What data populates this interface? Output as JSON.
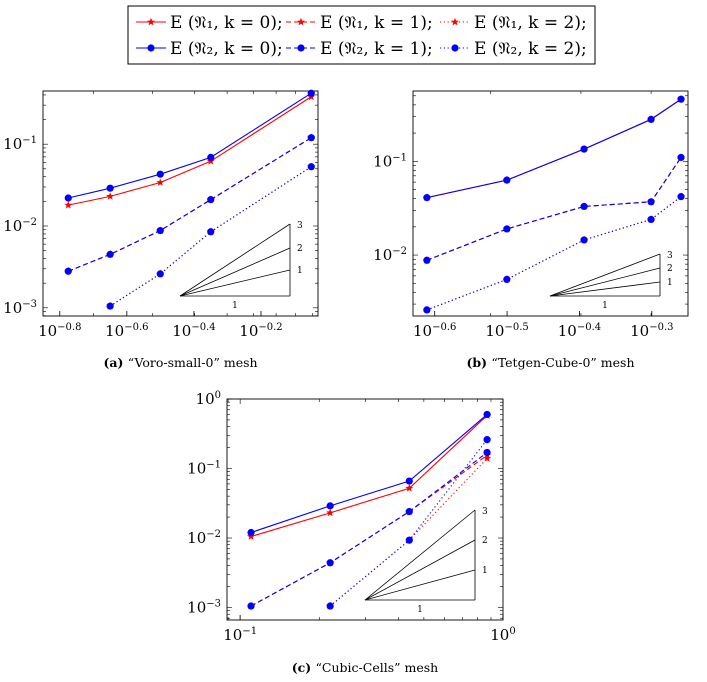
{
  "legend": {
    "entries": [
      {
        "label": "E (𝔑₁, k = 0);",
        "color": "#ff0000",
        "dash": "solid",
        "marker": "star"
      },
      {
        "label": "E (𝔑₁, k = 1);",
        "color": "#ff0000",
        "dash": "dashed",
        "marker": "star"
      },
      {
        "label": "E (𝔑₁, k = 2);",
        "color": "#ff0000",
        "dash": "dotted",
        "marker": "star"
      },
      {
        "label": "E (𝔑₂, k = 0);",
        "color": "#0000ff",
        "dash": "solid",
        "marker": "circle"
      },
      {
        "label": "E (𝔑₂, k = 1);",
        "color": "#0000ff",
        "dash": "dashed",
        "marker": "circle"
      },
      {
        "label": "E (𝔑₂, k = 2);",
        "color": "#0000ff",
        "dash": "dotted",
        "marker": "circle"
      }
    ]
  },
  "chart_data": [
    {
      "type": "line",
      "caption_tag": "(a)",
      "caption_text": "“Voro-small-0” mesh",
      "xscale": "log10",
      "yscale": "log10",
      "xlim_log10": [
        -0.85,
        -0.03
      ],
      "ylim_log10": [
        -3.1,
        -0.35
      ],
      "xticks": [
        {
          "v": -0.8,
          "base": "10",
          "exp": "−0.8"
        },
        {
          "v": -0.6,
          "base": "10",
          "exp": "−0.6"
        },
        {
          "v": -0.4,
          "base": "10",
          "exp": "−0.4"
        },
        {
          "v": -0.2,
          "base": "10",
          "exp": "−0.2"
        }
      ],
      "yticks": [
        {
          "v": -3,
          "base": "10",
          "exp": "−3"
        },
        {
          "v": -2,
          "base": "10",
          "exp": "−2"
        },
        {
          "v": -1,
          "base": "10",
          "exp": "−1"
        }
      ],
      "slope_triangle": {
        "labels": [
          "3",
          "2",
          "1"
        ],
        "base_label": "1"
      },
      "series": [
        {
          "name": "E (𝔑₁, k = 0)",
          "color": "#ff0000",
          "dash": "solid",
          "marker": "star",
          "x": [
            0.168,
            0.224,
            0.316,
            0.447,
            0.891
          ],
          "y": [
            0.018,
            0.023,
            0.034,
            0.062,
            0.38
          ]
        },
        {
          "name": "E (𝔑₁, k = 1)",
          "color": "#ff0000",
          "dash": "dashed",
          "marker": "star",
          "x": [
            0.168,
            0.224,
            0.316,
            0.447,
            0.891
          ],
          "y": [
            0.0028,
            0.0045,
            0.0088,
            0.021,
            0.12
          ]
        },
        {
          "name": "E (𝔑₁, k = 2)",
          "color": "#ff0000",
          "dash": "dotted",
          "marker": "star",
          "x": [
            0.224,
            0.316,
            0.447,
            0.891
          ],
          "y": [
            0.00105,
            0.0026,
            0.0085,
            0.053
          ]
        },
        {
          "name": "E (𝔑₂, k = 0)",
          "color": "#0000ff",
          "dash": "solid",
          "marker": "circle",
          "x": [
            0.168,
            0.224,
            0.316,
            0.447,
            0.891
          ],
          "y": [
            0.022,
            0.029,
            0.043,
            0.069,
            0.42
          ]
        },
        {
          "name": "E (𝔑₂, k = 1)",
          "color": "#0000ff",
          "dash": "dashed",
          "marker": "circle",
          "x": [
            0.168,
            0.224,
            0.316,
            0.447,
            0.891
          ],
          "y": [
            0.0028,
            0.0045,
            0.0088,
            0.021,
            0.12
          ]
        },
        {
          "name": "E (𝔑₂, k = 2)",
          "color": "#0000ff",
          "dash": "dotted",
          "marker": "circle",
          "x": [
            0.224,
            0.316,
            0.447,
            0.891
          ],
          "y": [
            0.00105,
            0.0026,
            0.0085,
            0.053
          ]
        }
      ]
    },
    {
      "type": "line",
      "caption_tag": "(b)",
      "caption_text": "“Tetgen-Cube-0” mesh",
      "xscale": "log10",
      "yscale": "log10",
      "xlim_log10": [
        -0.63,
        -0.25
      ],
      "ylim_log10": [
        -2.65,
        -0.25
      ],
      "xticks": [
        {
          "v": -0.6,
          "base": "10",
          "exp": "−0.6"
        },
        {
          "v": -0.5,
          "base": "10",
          "exp": "−0.5"
        },
        {
          "v": -0.4,
          "base": "10",
          "exp": "−0.4"
        },
        {
          "v": -0.3,
          "base": "10",
          "exp": "−0.3"
        }
      ],
      "yticks": [
        {
          "v": -2,
          "base": "10",
          "exp": "−2"
        },
        {
          "v": -1,
          "base": "10",
          "exp": "−1"
        }
      ],
      "slope_triangle": {
        "labels": [
          "3",
          "2",
          "1"
        ],
        "base_label": "1"
      },
      "series": [
        {
          "name": "E (𝔑₁, k = 0)",
          "color": "#ff0000",
          "dash": "solid",
          "marker": "star",
          "x": [
            0.245,
            0.316,
            0.404,
            0.5,
            0.55
          ],
          "y": [
            0.041,
            0.063,
            0.135,
            0.28,
            0.46
          ]
        },
        {
          "name": "E (𝔑₁, k = 1)",
          "color": "#ff0000",
          "dash": "dashed",
          "marker": "star",
          "x": [
            0.245,
            0.316,
            0.404,
            0.5,
            0.55
          ],
          "y": [
            0.0088,
            0.019,
            0.033,
            0.037,
            0.11
          ]
        },
        {
          "name": "E (𝔑₁, k = 2)",
          "color": "#ff0000",
          "dash": "dotted",
          "marker": "star",
          "x": [
            0.245,
            0.316,
            0.404,
            0.5,
            0.55
          ],
          "y": [
            0.0026,
            0.0055,
            0.0145,
            0.024,
            0.042
          ]
        },
        {
          "name": "E (𝔑₂, k = 0)",
          "color": "#0000ff",
          "dash": "solid",
          "marker": "circle",
          "x": [
            0.245,
            0.316,
            0.404,
            0.5,
            0.55
          ],
          "y": [
            0.041,
            0.063,
            0.135,
            0.28,
            0.46
          ]
        },
        {
          "name": "E (𝔑₂, k = 1)",
          "color": "#0000ff",
          "dash": "dashed",
          "marker": "circle",
          "x": [
            0.245,
            0.316,
            0.404,
            0.5,
            0.55
          ],
          "y": [
            0.0088,
            0.019,
            0.033,
            0.037,
            0.11
          ]
        },
        {
          "name": "E (𝔑₂, k = 2)",
          "color": "#0000ff",
          "dash": "dotted",
          "marker": "circle",
          "x": [
            0.245,
            0.316,
            0.404,
            0.5,
            0.55
          ],
          "y": [
            0.0026,
            0.0055,
            0.0145,
            0.024,
            0.042
          ]
        }
      ]
    },
    {
      "type": "line",
      "caption_tag": "(c)",
      "caption_text": "“Cubic-Cells” mesh",
      "xscale": "log10",
      "yscale": "log10",
      "xlim_log10": [
        -1.05,
        0.0
      ],
      "ylim_log10": [
        -3.18,
        0.0
      ],
      "xticks": [
        {
          "v": -1,
          "base": "10",
          "exp": "−1"
        },
        {
          "v": 0,
          "base": "10",
          "exp": "0"
        }
      ],
      "yticks": [
        {
          "v": -3,
          "base": "10",
          "exp": "−3"
        },
        {
          "v": -2,
          "base": "10",
          "exp": "−2"
        },
        {
          "v": -1,
          "base": "10",
          "exp": "−1"
        },
        {
          "v": 0,
          "base": "10",
          "exp": "0"
        }
      ],
      "slope_triangle": {
        "labels": [
          "3",
          "2",
          "1"
        ],
        "base_label": "1"
      },
      "series": [
        {
          "name": "E (𝔑₁, k = 0)",
          "color": "#ff0000",
          "dash": "solid",
          "marker": "star",
          "x": [
            0.11,
            0.22,
            0.44,
            0.87
          ],
          "y": [
            0.0105,
            0.023,
            0.052,
            0.58
          ]
        },
        {
          "name": "E (𝔑₁, k = 1)",
          "color": "#ff0000",
          "dash": "dashed",
          "marker": "star",
          "x": [
            0.11,
            0.22,
            0.44,
            0.87
          ],
          "y": [
            0.00105,
            0.0044,
            0.024,
            0.155
          ]
        },
        {
          "name": "E (𝔑₁, k = 2)",
          "color": "#ff0000",
          "dash": "dotted",
          "marker": "star",
          "x": [
            0.22,
            0.44,
            0.87
          ],
          "y": [
            0.00105,
            0.0093,
            0.14
          ]
        },
        {
          "name": "E (𝔑₂, k = 0)",
          "color": "#0000ff",
          "dash": "solid",
          "marker": "circle",
          "x": [
            0.11,
            0.22,
            0.44,
            0.87
          ],
          "y": [
            0.012,
            0.029,
            0.066,
            0.6
          ]
        },
        {
          "name": "E (𝔑₂, k = 1)",
          "color": "#0000ff",
          "dash": "dashed",
          "marker": "circle",
          "x": [
            0.11,
            0.22,
            0.44,
            0.87
          ],
          "y": [
            0.00105,
            0.0044,
            0.024,
            0.17
          ]
        },
        {
          "name": "E (𝔑₂, k = 2)",
          "color": "#0000ff",
          "dash": "dotted",
          "marker": "circle",
          "x": [
            0.22,
            0.44,
            0.87
          ],
          "y": [
            0.00105,
            0.0093,
            0.26
          ]
        }
      ]
    }
  ]
}
